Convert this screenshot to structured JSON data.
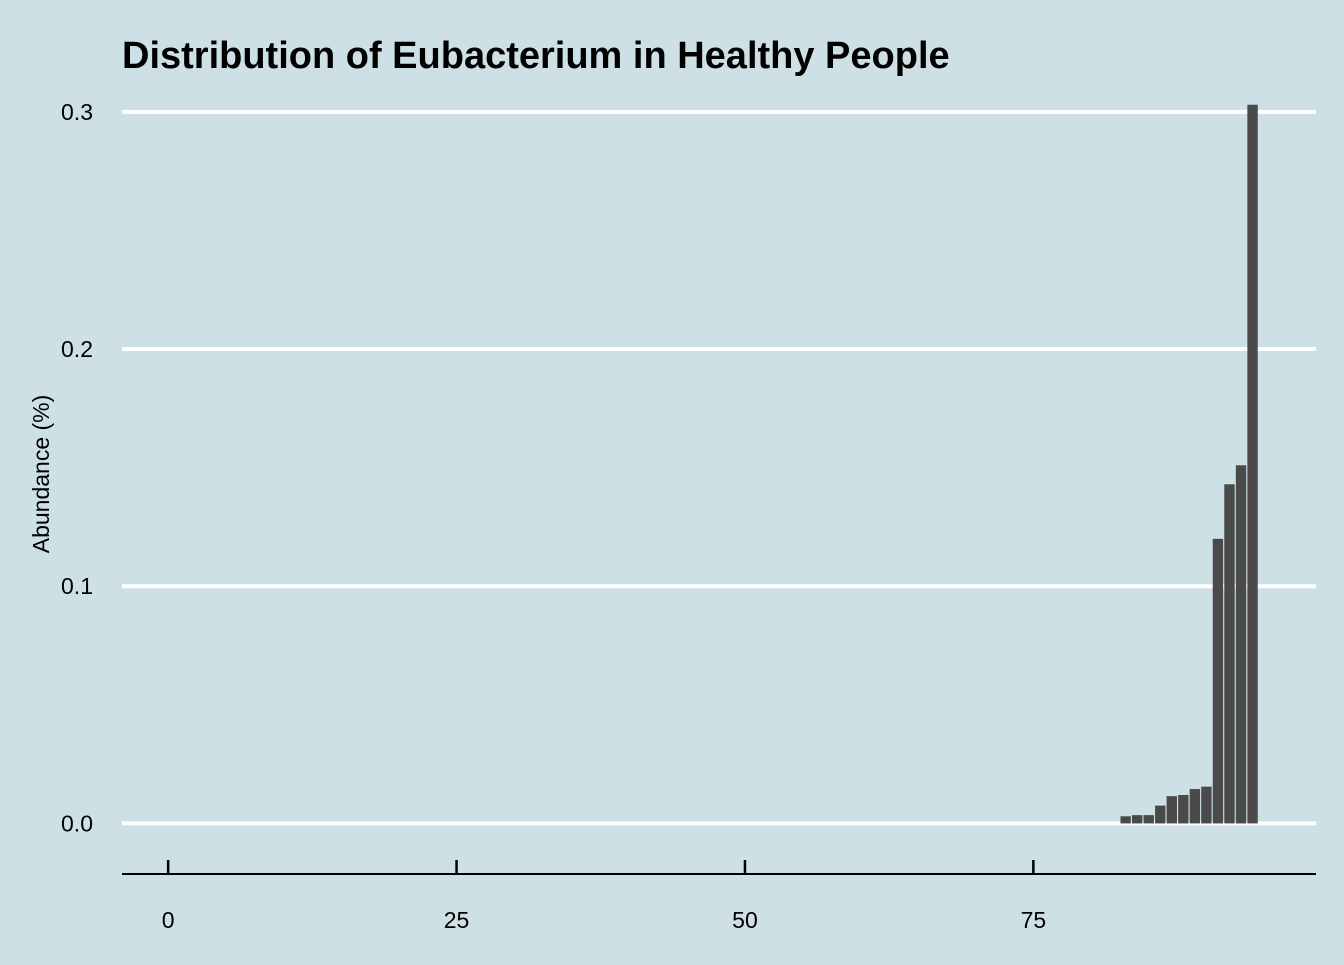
{
  "colors": {
    "background": "#cde0e6",
    "bar": "#4a4a4a",
    "grid": "#ffffff",
    "axis": "#000000",
    "text": "#000000"
  },
  "chart_data": {
    "type": "bar",
    "title": "Distribution of Eubacterium in Healthy People",
    "xlabel": "",
    "ylabel": "Abundance (%)",
    "xlim": [
      -4,
      99.5
    ],
    "ylim": [
      -0.015,
      0.305
    ],
    "x_ticks": [
      0,
      25,
      50,
      75
    ],
    "y_ticks": [
      0.0,
      0.1,
      0.2,
      0.3
    ],
    "y_tick_labels": [
      "0.0",
      "0.1",
      "0.2",
      "0.3"
    ],
    "grid": "horizontal major lines only",
    "legend": "none",
    "x": [
      83,
      84,
      85,
      86,
      87,
      88,
      89,
      90,
      91,
      92,
      93,
      94
    ],
    "values": [
      0.003,
      0.0035,
      0.0035,
      0.0075,
      0.0115,
      0.012,
      0.0145,
      0.0155,
      0.12,
      0.143,
      0.151,
      0.303
    ]
  }
}
